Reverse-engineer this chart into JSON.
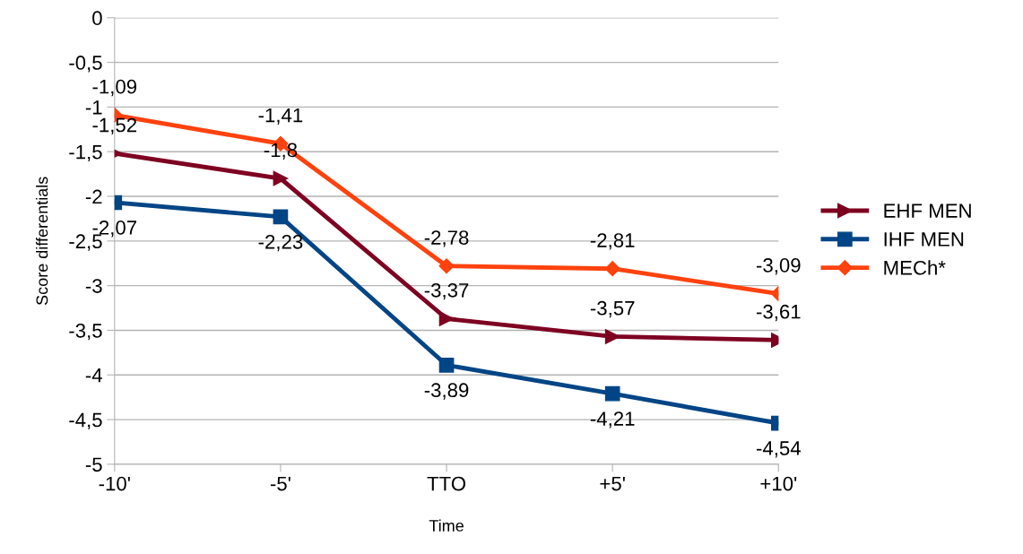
{
  "chart_data": {
    "type": "line",
    "xlabel": "Time",
    "ylabel": "Score differentials",
    "categories": [
      "-10'",
      "-5'",
      "TTO",
      "+5'",
      "+10'"
    ],
    "ylim": [
      -5,
      0
    ],
    "yticks": [
      {
        "value": -5,
        "label": "-5"
      },
      {
        "value": -4.5,
        "label": "-4,5"
      },
      {
        "value": -4,
        "label": "-4"
      },
      {
        "value": -3.5,
        "label": "-3,5"
      },
      {
        "value": -3,
        "label": "-3"
      },
      {
        "value": -2.5,
        "label": "-2,5"
      },
      {
        "value": -2,
        "label": "-2"
      },
      {
        "value": -1.5,
        "label": "-1,5"
      },
      {
        "value": -1,
        "label": "-1"
      },
      {
        "value": -0.5,
        "label": "-0,5"
      },
      {
        "value": 0,
        "label": "0"
      }
    ],
    "grid": "y",
    "legend": "right",
    "series": [
      {
        "name": "EHF MEN",
        "color": "#7e0021",
        "marker": "triangle",
        "values": [
          -1.52,
          -1.8,
          -3.37,
          -3.57,
          -3.61
        ],
        "value_labels": [
          "-1,52",
          "-1,8",
          "-3,37",
          "-3,57",
          "-3,61"
        ]
      },
      {
        "name": "IHF MEN",
        "color": "#004586",
        "marker": "square",
        "values": [
          -2.07,
          -2.23,
          -3.89,
          -4.21,
          -4.54
        ],
        "value_labels": [
          "-2,07",
          "-2,23",
          "-3,89",
          "-4,21",
          "-4,54"
        ]
      },
      {
        "name": "MECh*",
        "color": "#ff420e",
        "marker": "diamond",
        "values": [
          -1.09,
          -1.41,
          -2.78,
          -2.81,
          -3.09
        ],
        "value_labels": [
          "-1,09",
          "-1,41",
          "-2,78",
          "-2,81",
          "-3,09"
        ]
      }
    ]
  }
}
